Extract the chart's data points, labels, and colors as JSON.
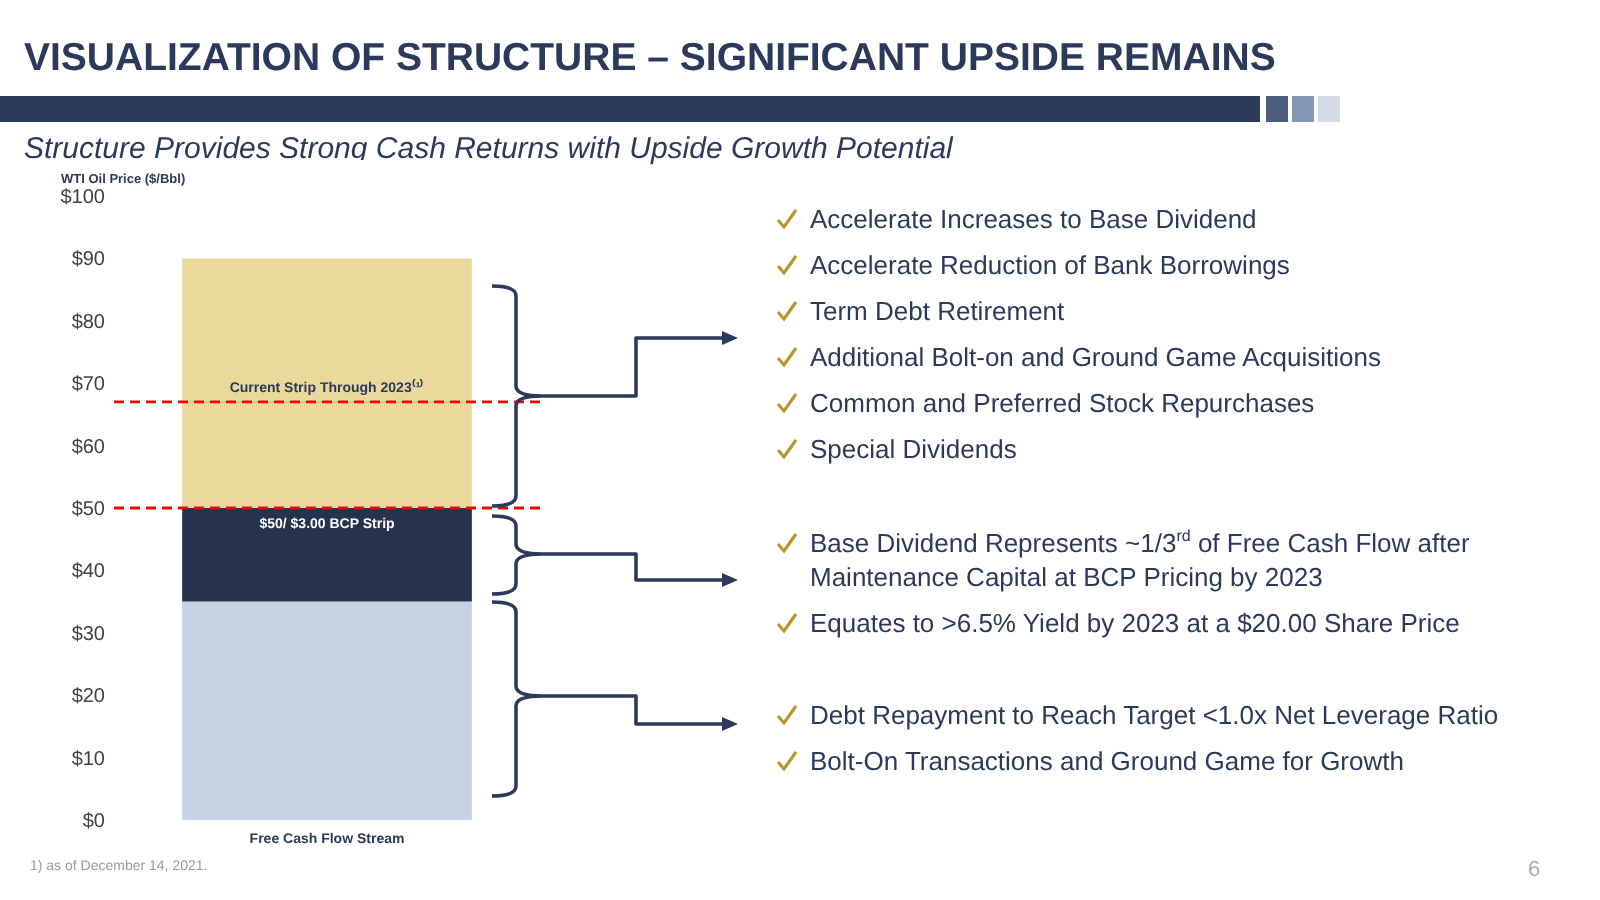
{
  "chart_data": {
    "type": "bar",
    "title": "VISUALIZATION OF STRUCTURE – SIGNIFICANT UPSIDE REMAINS",
    "subtitle": "Structure Provides Strong Cash Returns with Upside Growth Potential",
    "ylabel": "WTI Oil Price ($/Bbl)",
    "categories": [
      "Free Cash Flow Stream"
    ],
    "stacked": true,
    "series": [
      {
        "color": "#c6d1e3",
        "values": [
          35
        ]
      },
      {
        "color": "#26334f",
        "values": [
          15
        ]
      },
      {
        "color": "#ebd99b",
        "values": [
          40
        ]
      }
    ],
    "ylim": [
      0,
      100
    ],
    "yticks": [
      {
        "value": 0,
        "label": "$0"
      },
      {
        "value": 10,
        "label": "$10"
      },
      {
        "value": 20,
        "label": "$20"
      },
      {
        "value": 30,
        "label": "$30"
      },
      {
        "value": 40,
        "label": "$40"
      },
      {
        "value": 50,
        "label": "$50"
      },
      {
        "value": 60,
        "label": "$60"
      },
      {
        "value": 70,
        "label": "$70"
      },
      {
        "value": 80,
        "label": "$80"
      },
      {
        "value": 90,
        "label": "$90"
      },
      {
        "value": 100,
        "label": "$100"
      }
    ],
    "ref_lines": [
      {
        "axis": "y",
        "value": 67,
        "label": "Current Strip Through 2023⁽¹⁾",
        "color": "#ff0000",
        "line_style": "dashed"
      },
      {
        "axis": "y",
        "value": 50,
        "label": "$50/ $3.00 BCP Strip",
        "color": "#ff0000",
        "line_style": "dashed"
      }
    ],
    "annotations": [
      "Accelerate Increases to Base Dividend",
      "Accelerate Reduction of Bank Borrowings",
      "Term Debt Retirement",
      "Additional Bolt-on and Ground Game Acquisitions",
      "Common and Preferred Stock Repurchases",
      "Special Dividends",
      "Base Dividend Represents ~1/3$^{rd}$ of Free Cash Flow after Maintenance Capital at BCP Pricing by 2023",
      "Equates to >6.5% Yield by 2023 at a $20.00 Share Price",
      "Debt Repayment to Reach Target <1.0x Net Leverage Ratio",
      "Bolt-On Transactions and Ground Game for Growth",
      "1) as of December 14, 2021.",
      "6"
    ]
  }
}
